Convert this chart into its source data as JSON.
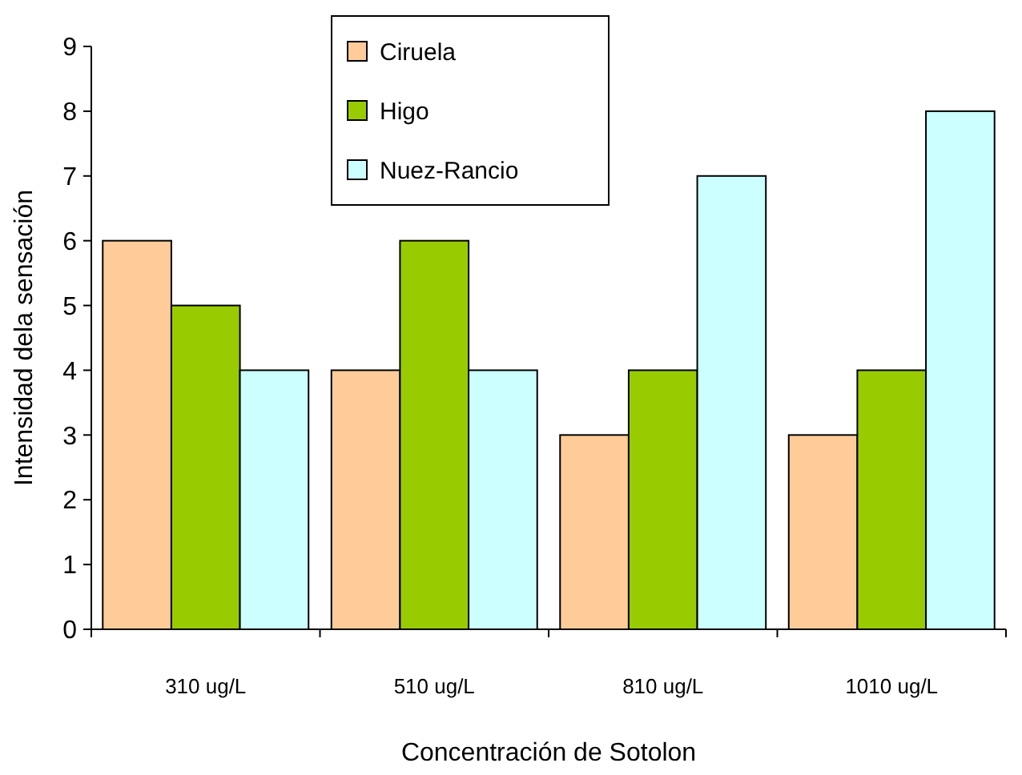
{
  "chart_data": {
    "type": "bar",
    "xlabel": "Concentración de Sotolon",
    "ylabel": "Intensidad dela sensación",
    "categories": [
      "310 ug/L",
      "510 ug/L",
      "810 ug/L",
      "1010 ug/L"
    ],
    "series": [
      {
        "name": "Ciruela",
        "color": "#ffcc99",
        "values": [
          6,
          4,
          3,
          3
        ]
      },
      {
        "name": "Higo",
        "color": "#99cc00",
        "values": [
          5,
          6,
          4,
          4
        ]
      },
      {
        "name": "Nuez-Rancio",
        "color": "#ccffff",
        "values": [
          4,
          4,
          7,
          8
        ]
      }
    ],
    "ylim": [
      0,
      9
    ],
    "yticks": [
      0,
      1,
      2,
      3,
      4,
      5,
      6,
      7,
      8,
      9
    ],
    "legend": "top",
    "grid": false
  }
}
